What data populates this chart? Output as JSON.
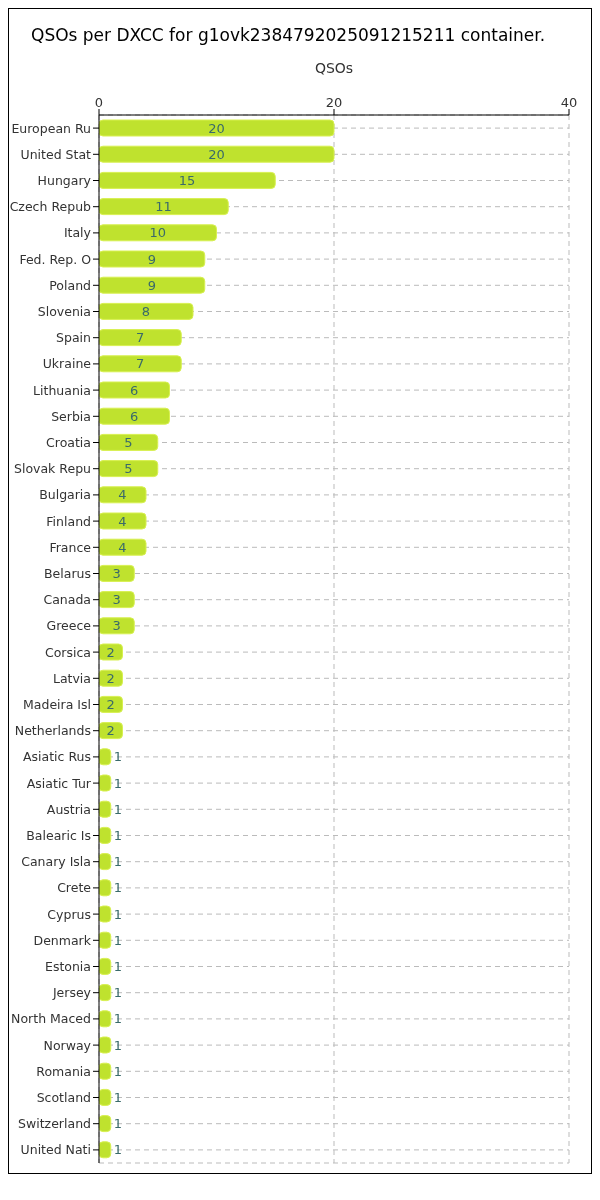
{
  "chart_data": {
    "type": "bar",
    "orientation": "horizontal",
    "title": "QSOs per DXCC for g1ovk2384792025091215211 container.",
    "xlabel": "QSOs",
    "categories": [
      "European Ru",
      "United Stat",
      "Hungary",
      "Czech Repub",
      "Italy",
      "Fed. Rep. O",
      "Poland",
      "Slovenia",
      "Spain",
      "Ukraine",
      "Lithuania",
      "Serbia",
      "Croatia",
      "Slovak Repu",
      "Bulgaria",
      "Finland",
      "France",
      "Belarus",
      "Canada",
      "Greece",
      "Corsica",
      "Latvia",
      "Madeira Isl",
      "Netherlands",
      "Asiatic Rus",
      "Asiatic Tur",
      "Austria",
      "Balearic Is",
      "Canary Isla",
      "Crete",
      "Cyprus",
      "Denmark",
      "Estonia",
      "Jersey",
      "North Maced",
      "Norway",
      "Romania",
      "Scotland",
      "Switzerland",
      "United Nati"
    ],
    "values": [
      20,
      20,
      15,
      11,
      10,
      9,
      9,
      8,
      7,
      7,
      6,
      6,
      5,
      5,
      4,
      4,
      4,
      3,
      3,
      3,
      2,
      2,
      2,
      2,
      1,
      1,
      1,
      1,
      1,
      1,
      1,
      1,
      1,
      1,
      1,
      1,
      1,
      1,
      1,
      1
    ],
    "color": "#bfe22e",
    "xlim": [
      0,
      40
    ],
    "xticks": [
      0,
      20,
      40
    ],
    "grid": true,
    "data_labels": true
  }
}
